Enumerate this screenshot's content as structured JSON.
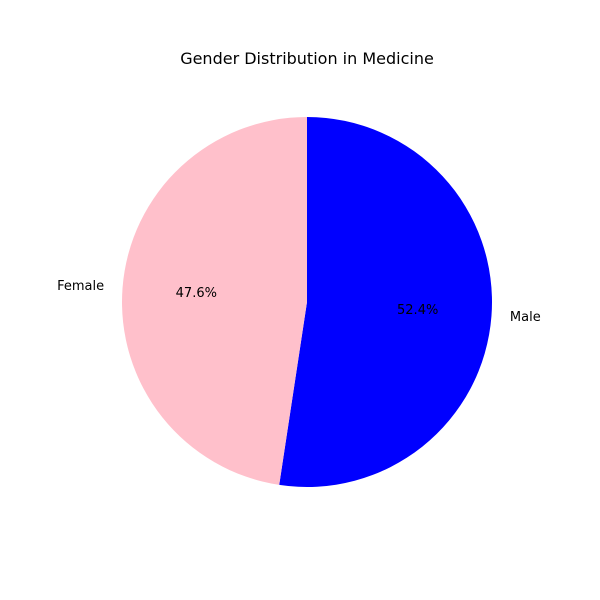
{
  "chart_data": {
    "type": "pie",
    "title": "Gender Distribution in Medicine",
    "start_angle_deg": 90,
    "direction": "clockwise",
    "slices": [
      {
        "label": "Male",
        "value": 52.4,
        "pct_label": "52.4%",
        "color": "#0000ff"
      },
      {
        "label": "Female",
        "value": 47.6,
        "pct_label": "47.6%",
        "color": "#ffc0cb"
      }
    ]
  }
}
